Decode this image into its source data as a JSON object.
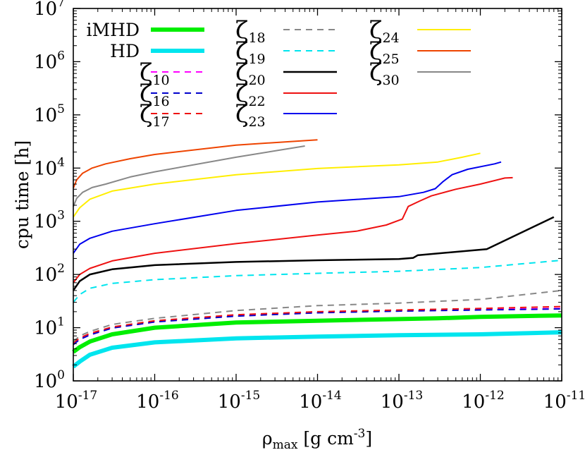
{
  "chart_data": {
    "type": "line",
    "xlabel": "ρ",
    "xlabel_sub": "max",
    "xlabel_unit": " [g cm",
    "xlabel_unit_sup": "-3",
    "xlabel_unit_end": "]",
    "ylabel": "cpu time [h]",
    "xscale": "log",
    "yscale": "log",
    "xlim": [
      1e-17,
      1e-11
    ],
    "ylim": [
      1,
      10000000.0
    ],
    "grid": false,
    "legend_position": "inside-top",
    "x_ticks": [
      {
        "value": 1e-17,
        "base": "10",
        "exp": "-17"
      },
      {
        "value": 1e-16,
        "base": "10",
        "exp": "-16"
      },
      {
        "value": 1e-15,
        "base": "10",
        "exp": "-15"
      },
      {
        "value": 1e-14,
        "base": "10",
        "exp": "-14"
      },
      {
        "value": 1e-13,
        "base": "10",
        "exp": "-13"
      },
      {
        "value": 1e-12,
        "base": "10",
        "exp": "-12"
      },
      {
        "value": 1e-11,
        "base": "10",
        "exp": "-11"
      }
    ],
    "y_ticks": [
      {
        "value": 1,
        "base": "10",
        "exp": "0"
      },
      {
        "value": 10,
        "base": "10",
        "exp": "1"
      },
      {
        "value": 100,
        "base": "10",
        "exp": "2"
      },
      {
        "value": 1000,
        "base": "10",
        "exp": "3"
      },
      {
        "value": 10000,
        "base": "10",
        "exp": "4"
      },
      {
        "value": 100000,
        "base": "10",
        "exp": "5"
      },
      {
        "value": 1000000,
        "base": "10",
        "exp": "6"
      },
      {
        "value": 10000000,
        "base": "10",
        "exp": "7"
      }
    ],
    "series": [
      {
        "name": "iMHD",
        "color": "#00ee00",
        "dash": "solid",
        "width": 6,
        "legend_col": 0,
        "legend_row": 0,
        "x": [
          1e-17,
          1.2e-17,
          1.6e-17,
          3e-17,
          1e-16,
          1e-15,
          1e-14,
          1e-13,
          3e-13,
          1e-12,
          1e-11
        ],
        "y": [
          3.5,
          4.3,
          5.5,
          7.5,
          10,
          12.5,
          13.5,
          14.5,
          15,
          16,
          17
        ]
      },
      {
        "name": "HD",
        "color": "#00e5ee",
        "dash": "solid",
        "width": 6,
        "legend_col": 0,
        "legend_row": 1,
        "x": [
          1e-17,
          1.2e-17,
          1.6e-17,
          3e-17,
          1e-16,
          1e-15,
          1e-14,
          1e-13,
          1e-12,
          1e-11
        ],
        "y": [
          1.85,
          2.3,
          3.1,
          4.2,
          5.3,
          6.3,
          6.8,
          7.2,
          7.5,
          8.2
        ]
      },
      {
        "name": "10",
        "zeta": true,
        "color": "#ff00ff",
        "dash": "dashed",
        "width": 2,
        "legend_col": 0,
        "legend_row": 2,
        "x": [
          1e-17,
          1.2e-17,
          1.6e-17,
          3e-17,
          1e-16,
          1e-15,
          1e-14,
          1e-13,
          1e-12,
          1e-11
        ],
        "y": [
          5.0,
          6.2,
          7.5,
          10,
          13,
          17,
          19.5,
          21,
          22,
          23
        ]
      },
      {
        "name": "16",
        "zeta": true,
        "color": "#0000cc",
        "dash": "dashed",
        "width": 2,
        "legend_col": 0,
        "legend_row": 3,
        "x": [
          1e-17,
          1.2e-17,
          1.6e-17,
          3e-17,
          1e-16,
          1e-15,
          1e-14,
          1e-13,
          1e-12,
          1e-11
        ],
        "y": [
          4.8,
          6.0,
          7.3,
          9.8,
          12.8,
          16.5,
          19,
          20.5,
          21.5,
          22.5
        ]
      },
      {
        "name": "17",
        "zeta": true,
        "color": "#ee1111",
        "dash": "dashed",
        "width": 2,
        "legend_col": 0,
        "legend_row": 4,
        "x": [
          1e-17,
          1.2e-17,
          1.6e-17,
          3e-17,
          1e-16,
          1e-15,
          1e-14,
          1e-13,
          1e-12,
          1e-11
        ],
        "y": [
          5.2,
          6.4,
          7.8,
          10.3,
          13.5,
          17.5,
          20,
          21.5,
          23,
          25
        ]
      },
      {
        "name": "18",
        "zeta": true,
        "color": "#888888",
        "dash": "dashed",
        "width": 2,
        "legend_col": 1,
        "legend_row": 0,
        "x": [
          1e-17,
          1.2e-17,
          1.6e-17,
          3e-17,
          1e-16,
          1e-15,
          1e-14,
          1e-13,
          1e-12,
          1e-11
        ],
        "y": [
          5.5,
          7,
          8.5,
          11.5,
          15,
          21,
          26,
          29,
          34,
          50
        ]
      },
      {
        "name": "19",
        "zeta": true,
        "color": "#00e5ee",
        "dash": "dashed",
        "width": 2,
        "legend_col": 1,
        "legend_row": 1,
        "x": [
          1e-17,
          1.2e-17,
          1.6e-17,
          3e-17,
          1e-16,
          1e-15,
          1e-14,
          1e-13,
          1e-12,
          1e-11
        ],
        "y": [
          30,
          42,
          55,
          68,
          80,
          95,
          105,
          115,
          135,
          185
        ]
      },
      {
        "name": "20",
        "zeta": true,
        "color": "#000000",
        "dash": "solid",
        "width": 2.5,
        "legend_col": 1,
        "legend_row": 2,
        "x": [
          1e-17,
          1.2e-17,
          1.6e-17,
          3e-17,
          1e-16,
          1e-15,
          1e-14,
          1e-13,
          1.5e-13,
          1.7e-13,
          1.2e-12,
          8e-12
        ],
        "y": [
          50,
          75,
          100,
          125,
          150,
          172,
          185,
          195,
          205,
          230,
          300,
          1200
        ]
      },
      {
        "name": "22",
        "zeta": true,
        "color": "#ee1111",
        "dash": "solid",
        "width": 2,
        "legend_col": 1,
        "legend_row": 3,
        "x": [
          1e-17,
          1.2e-17,
          1.6e-17,
          3e-17,
          1e-16,
          1e-15,
          1e-14,
          3e-14,
          7e-14,
          1.1e-13,
          1.3e-13,
          1.8e-13,
          2.5e-13,
          5e-13,
          1e-12,
          2e-12,
          2.5e-12
        ],
        "y": [
          70,
          100,
          130,
          180,
          250,
          380,
          550,
          650,
          850,
          1100,
          1900,
          2400,
          3000,
          4000,
          5000,
          6500,
          6600
        ]
      },
      {
        "name": "23",
        "zeta": true,
        "color": "#0000ee",
        "dash": "solid",
        "width": 2,
        "legend_col": 1,
        "legend_row": 4,
        "x": [
          1e-17,
          1.2e-17,
          1.6e-17,
          3e-17,
          1e-16,
          1e-15,
          1e-14,
          1e-13,
          2e-13,
          2.8e-13,
          3.5e-13,
          4.5e-13,
          7e-13,
          1.5e-12,
          1.8e-12
        ],
        "y": [
          250,
          370,
          480,
          650,
          900,
          1600,
          2300,
          2900,
          3500,
          4100,
          5600,
          7500,
          9500,
          12000,
          13000
        ]
      },
      {
        "name": "24",
        "zeta": true,
        "color": "#ffee00",
        "dash": "solid",
        "width": 2,
        "legend_col": 2,
        "legend_row": 0,
        "x": [
          1e-17,
          1.2e-17,
          1.6e-17,
          3e-17,
          1e-16,
          1e-15,
          1e-14,
          1e-13,
          3e-13,
          6e-13,
          1e-12
        ],
        "y": [
          1200,
          1800,
          2600,
          3700,
          5000,
          7500,
          9800,
          11500,
          13000,
          16000,
          19000
        ]
      },
      {
        "name": "25",
        "zeta": true,
        "color": "#ee4400",
        "dash": "solid",
        "width": 2,
        "legend_col": 2,
        "legend_row": 1,
        "x": [
          1e-17,
          1.1e-17,
          1.3e-17,
          1.7e-17,
          2.5e-17,
          5e-17,
          1e-16,
          1e-15,
          1e-14
        ],
        "y": [
          4200,
          6000,
          8000,
          10000,
          12000,
          15000,
          18000,
          27000,
          34000
        ]
      },
      {
        "name": "30",
        "zeta": true,
        "color": "#888888",
        "dash": "solid",
        "width": 2,
        "legend_col": 2,
        "legend_row": 2,
        "x": [
          1e-17,
          1.1e-17,
          1.3e-17,
          1.7e-17,
          2.5e-17,
          5e-17,
          1e-16,
          1e-15,
          7e-15
        ],
        "y": [
          1900,
          2700,
          3500,
          4300,
          5000,
          6800,
          8500,
          16000,
          26000
        ]
      }
    ]
  }
}
